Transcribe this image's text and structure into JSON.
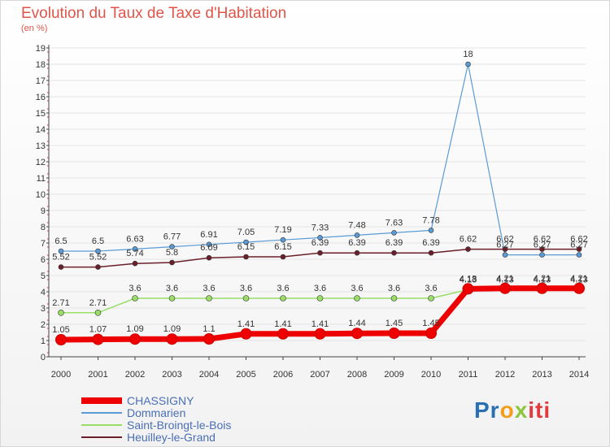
{
  "title": "Evolution du Taux de Taxe d'Habitation",
  "unit_label": "(en %)",
  "logo_text": "Proxiti",
  "chart_data": {
    "type": "line",
    "x": [
      "2000",
      "2001",
      "2002",
      "2003",
      "2004",
      "2005",
      "2006",
      "2007",
      "2008",
      "2009",
      "2010",
      "2011",
      "2012",
      "2013",
      "2014"
    ],
    "ylim": [
      0,
      19
    ],
    "yticks": [
      "0",
      "1",
      "2",
      "3",
      "4",
      "5",
      "6",
      "7",
      "8",
      "9",
      "10",
      "11",
      "12",
      "13",
      "14",
      "15",
      "16",
      "17",
      "18",
      "19"
    ],
    "grid": "horizontal",
    "legend_position": "bottom-left",
    "series": [
      {
        "name": "CHASSIGNY",
        "color": "#ee0000",
        "values": [
          1.05,
          1.07,
          1.09,
          1.09,
          1.1,
          1.41,
          1.41,
          1.41,
          1.44,
          1.45,
          1.45,
          4.18,
          4.21,
          4.21,
          4.21
        ],
        "labels": [
          "1.05",
          "1.07",
          "1.09",
          "1.09",
          "1.1",
          "1.41",
          "1.41",
          "1.41",
          "1.44",
          "1.45",
          "1.45",
          "4.18",
          "4.21",
          "4.21",
          "4.21"
        ]
      },
      {
        "name": "Dommarien",
        "color": "#5b9bd5",
        "values": [
          6.5,
          6.5,
          6.63,
          6.77,
          6.91,
          7.05,
          7.19,
          7.33,
          7.48,
          7.63,
          7.78,
          18,
          6.27,
          6.27,
          6.27
        ],
        "labels": [
          "6.5",
          "6.5",
          "6.63",
          "6.77",
          "6.91",
          "7.05",
          "7.19",
          "7.33",
          "7.48",
          "7.63",
          "7.78",
          "18",
          "6.27",
          "6.27",
          "6.27"
        ]
      },
      {
        "name": "Saint-Broingt-le-Bois",
        "color": "#99dd66",
        "values": [
          2.71,
          2.71,
          3.6,
          3.6,
          3.6,
          3.6,
          3.6,
          3.6,
          3.6,
          3.6,
          3.6,
          4.13,
          4.13,
          4.13,
          4.13
        ],
        "labels": [
          "2.71",
          "2.71",
          "3.6",
          "3.6",
          "3.6",
          "3.6",
          "3.6",
          "3.6",
          "3.6",
          "3.6",
          "3.6",
          "4.13",
          "4.13",
          "4.13",
          "4.13"
        ]
      },
      {
        "name": "Heuilley-le-Grand",
        "color": "#6b1f2a",
        "values": [
          5.52,
          5.52,
          5.74,
          5.8,
          6.09,
          6.15,
          6.15,
          6.39,
          6.39,
          6.39,
          6.39,
          6.62,
          6.62,
          6.62,
          6.62
        ],
        "labels": [
          "5.52",
          "5.52",
          "5.74",
          "5.8",
          "6.09",
          "6.15",
          "6.15",
          "6.39",
          "6.39",
          "6.39",
          "6.39",
          "6.62",
          "6.62",
          "6.62",
          "6.62"
        ]
      }
    ]
  }
}
